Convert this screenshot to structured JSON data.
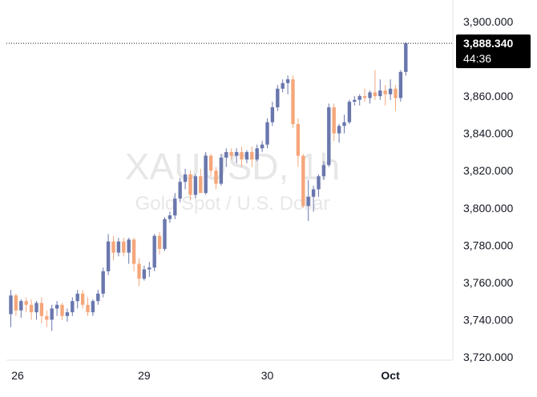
{
  "chart_data": {
    "type": "candlestick",
    "watermark": {
      "symbol": "XAUUSD, 1h",
      "description": "Gold Spot / U.S. Dollar"
    },
    "y_ticks": [
      "3,900.000",
      "3,880.000",
      "3,860.000",
      "3,840.000",
      "3,820.000",
      "3,800.000",
      "3,780.000",
      "3,760.000",
      "3,740.000",
      "3,720.000"
    ],
    "ylim": [
      3720,
      3900
    ],
    "x_ticks": [
      {
        "label": "26",
        "index": 0,
        "bold": false
      },
      {
        "label": "29",
        "index": 26,
        "bold": false
      },
      {
        "label": "30",
        "index": 50,
        "bold": false
      },
      {
        "label": "Oct",
        "index": 74,
        "bold": true
      }
    ],
    "last_price": "3,888.340",
    "countdown": "44:36",
    "colors": {
      "up": "#6a77ad",
      "down": "#f5a77b",
      "label_bg": "#000000",
      "axis_text": "#131722"
    },
    "candles": [
      [
        3743,
        3756,
        3736,
        3753
      ],
      [
        3753,
        3754,
        3742,
        3745
      ],
      [
        3745,
        3751,
        3741,
        3750
      ],
      [
        3750,
        3752,
        3744,
        3748
      ],
      [
        3748,
        3751,
        3740,
        3744
      ],
      [
        3744,
        3750,
        3740,
        3749
      ],
      [
        3749,
        3752,
        3738,
        3742
      ],
      [
        3742,
        3745,
        3736,
        3740
      ],
      [
        3740,
        3748,
        3734,
        3746
      ],
      [
        3746,
        3750,
        3742,
        3748
      ],
      [
        3748,
        3749,
        3740,
        3742
      ],
      [
        3742,
        3746,
        3739,
        3744
      ],
      [
        3744,
        3752,
        3742,
        3750
      ],
      [
        3750,
        3756,
        3746,
        3754
      ],
      [
        3754,
        3756,
        3746,
        3748
      ],
      [
        3748,
        3752,
        3742,
        3744
      ],
      [
        3744,
        3751,
        3742,
        3750
      ],
      [
        3750,
        3756,
        3748,
        3754
      ],
      [
        3754,
        3768,
        3752,
        3766
      ],
      [
        3766,
        3786,
        3764,
        3782
      ],
      [
        3782,
        3785,
        3772,
        3776
      ],
      [
        3776,
        3784,
        3774,
        3782
      ],
      [
        3782,
        3784,
        3774,
        3776
      ],
      [
        3776,
        3784,
        3770,
        3783
      ],
      [
        3783,
        3784,
        3766,
        3770
      ],
      [
        3770,
        3773,
        3758,
        3762
      ],
      [
        3762,
        3769,
        3761,
        3767
      ],
      [
        3767,
        3771,
        3763,
        3768
      ],
      [
        3768,
        3786,
        3766,
        3785
      ],
      [
        3785,
        3787,
        3775,
        3778
      ],
      [
        3778,
        3795,
        3777,
        3794
      ],
      [
        3794,
        3798,
        3792,
        3796
      ],
      [
        3796,
        3808,
        3794,
        3805
      ],
      [
        3805,
        3816,
        3803,
        3814
      ],
      [
        3814,
        3821,
        3810,
        3818
      ],
      [
        3818,
        3820,
        3804,
        3807
      ],
      [
        3807,
        3818,
        3805,
        3817
      ],
      [
        3817,
        3821,
        3808,
        3808
      ],
      [
        3808,
        3830,
        3807,
        3828
      ],
      [
        3828,
        3829,
        3817,
        3820
      ],
      [
        3820,
        3822,
        3810,
        3813
      ],
      [
        3813,
        3829,
        3812,
        3827
      ],
      [
        3827,
        3832,
        3822,
        3830
      ],
      [
        3830,
        3832,
        3826,
        3828
      ],
      [
        3828,
        3832,
        3824,
        3830
      ],
      [
        3830,
        3833,
        3822,
        3826
      ],
      [
        3826,
        3831,
        3824,
        3830
      ],
      [
        3830,
        3833,
        3822,
        3826
      ],
      [
        3826,
        3834,
        3825,
        3832
      ],
      [
        3832,
        3836,
        3830,
        3834
      ],
      [
        3834,
        3848,
        3832,
        3846
      ],
      [
        3846,
        3857,
        3844,
        3854
      ],
      [
        3854,
        3866,
        3852,
        3864
      ],
      [
        3864,
        3869,
        3862,
        3867
      ],
      [
        3867,
        3871,
        3861,
        3869
      ],
      [
        3869,
        3871,
        3843,
        3845
      ],
      [
        3845,
        3848,
        3822,
        3828
      ],
      [
        3828,
        3829,
        3800,
        3801
      ],
      [
        3801,
        3815,
        3793,
        3806
      ],
      [
        3806,
        3812,
        3798,
        3810
      ],
      [
        3810,
        3818,
        3806,
        3817
      ],
      [
        3817,
        3825,
        3815,
        3823
      ],
      [
        3823,
        3856,
        3822,
        3854
      ],
      [
        3854,
        3856,
        3836,
        3840
      ],
      [
        3840,
        3845,
        3835,
        3844
      ],
      [
        3844,
        3850,
        3840,
        3846
      ],
      [
        3846,
        3858,
        3845,
        3857
      ],
      [
        3857,
        3860,
        3855,
        3858
      ],
      [
        3858,
        3861,
        3855,
        3860
      ],
      [
        3860,
        3864,
        3857,
        3859
      ],
      [
        3859,
        3863,
        3856,
        3862
      ],
      [
        3862,
        3874,
        3858,
        3860
      ],
      [
        3860,
        3869,
        3858,
        3863
      ],
      [
        3863,
        3866,
        3855,
        3861
      ],
      [
        3861,
        3869,
        3858,
        3864
      ],
      [
        3864,
        3866,
        3852,
        3859
      ],
      [
        3859,
        3874,
        3857,
        3873
      ],
      [
        3873,
        3889,
        3871,
        3888.34
      ]
    ]
  }
}
